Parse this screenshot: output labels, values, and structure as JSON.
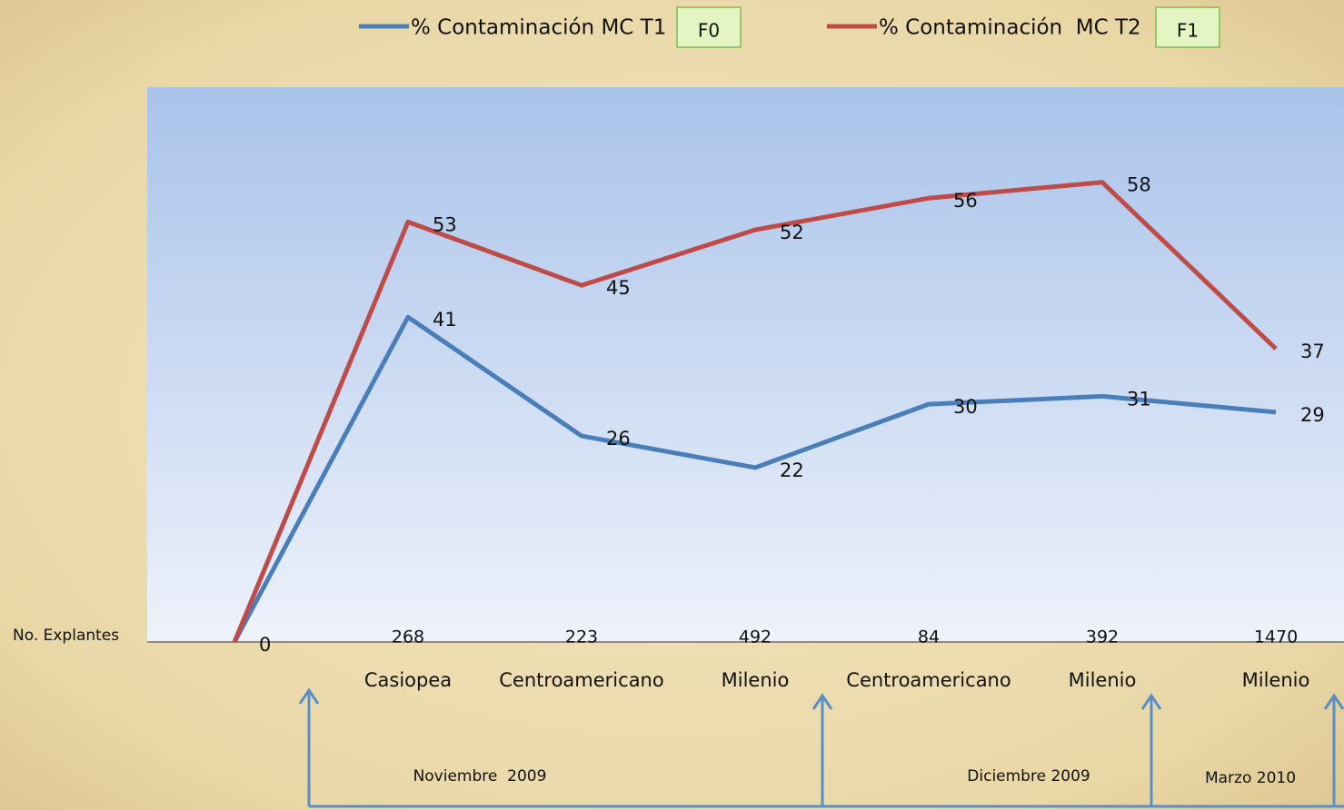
{
  "chart_data": {
    "type": "line",
    "categories": [
      null,
      "Casiopea",
      "Centroamericano",
      "Milenio",
      "Centroamericano",
      "Milenio",
      "Milenio"
    ],
    "series": [
      {
        "name": "% Contaminación MC T1",
        "color": "#4a7ebb",
        "values": [
          0,
          41,
          26,
          22,
          30,
          31,
          29
        ]
      },
      {
        "name": "% Contaminación  MC T2",
        "color": "#be4b48",
        "values": [
          0,
          53,
          45,
          52,
          56,
          58,
          37
        ]
      }
    ],
    "ylim": [
      0,
      70
    ],
    "legend_tags": [
      "F0",
      "F1"
    ],
    "explants_label": "No. Explantes",
    "explants": [
      null,
      268,
      223,
      492,
      84,
      392,
      1470
    ],
    "periods": [
      "Noviembre  2009",
      "Diciembre 2009",
      "Marzo 2010"
    ]
  }
}
